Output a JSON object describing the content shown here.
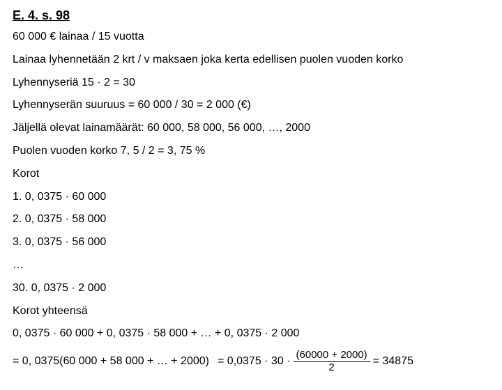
{
  "title": "E. 4. s. 98",
  "lines": {
    "l1": "60 000 € lainaa / 15 vuotta",
    "l2": "Lainaa lyhennetään 2 krt / v maksaen joka kerta edellisen puolen vuoden korko",
    "l3": "Lyhennyseriä 15 · 2 = 30",
    "l4": "Lyhennyserän suuruus = 60 000 / 30 = 2 000 (€)",
    "l5": "Jäljellä olevat lainamäärät: 60 000, 58 000, 56 000, …, 2000",
    "l6": "Puolen vuoden korko 7, 5 / 2 = 3, 75 %",
    "l7": "Korot",
    "l8": "1. 0, 0375 · 60 000",
    "l9": "2. 0, 0375 · 58 000",
    "l10": "3. 0, 0375 · 56 000",
    "l11": "…",
    "l12": "30. 0, 0375 · 2 000",
    "l13": "Korot yhteensä",
    "l14": "0, 0375 · 60 000 + 0, 0375 · 58 000 + … + 0, 0375 · 2 000",
    "l15_left": "= 0, 0375(60 000 + 58 000 + … + 2000)",
    "l15_eq_prefix": "= 0,0375 · 30 ·",
    "l15_num": "(60000 + 2000)",
    "l15_den": "2",
    "l15_eq_suffix": "= 34875"
  }
}
